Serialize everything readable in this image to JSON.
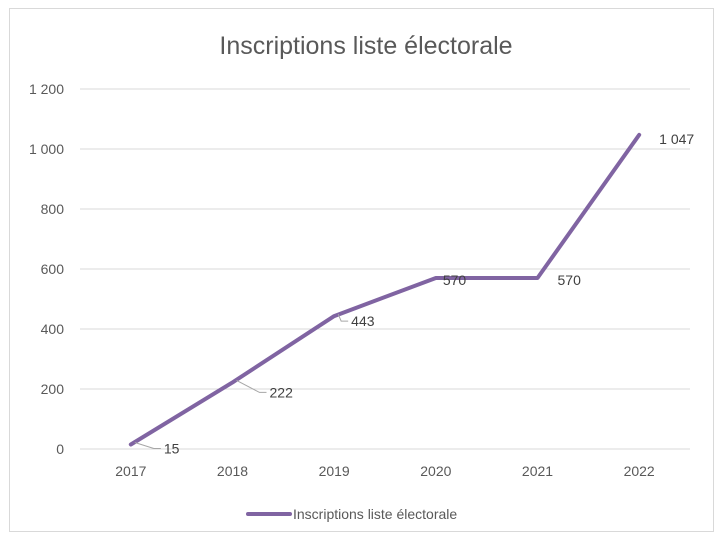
{
  "chart_data": {
    "type": "line",
    "title": "Inscriptions liste électorale",
    "categories": [
      "2017",
      "2018",
      "2019",
      "2020",
      "2021",
      "2022"
    ],
    "series": [
      {
        "name": "Inscriptions liste électorale",
        "values": [
          15,
          222,
          443,
          570,
          570,
          1047
        ],
        "color": "#8064a2"
      }
    ],
    "data_labels": [
      "15",
      "222",
      "443",
      "570",
      "570",
      "1 047"
    ],
    "y_ticks": [
      {
        "value": 0,
        "label": "0"
      },
      {
        "value": 200,
        "label": "200"
      },
      {
        "value": 400,
        "label": "400"
      },
      {
        "value": 600,
        "label": "600"
      },
      {
        "value": 800,
        "label": "800"
      },
      {
        "value": 1000,
        "label": "1 000"
      },
      {
        "value": 1200,
        "label": "1 200"
      }
    ],
    "ylim": [
      0,
      1200
    ],
    "grid": true,
    "legend_position": "bottom"
  }
}
